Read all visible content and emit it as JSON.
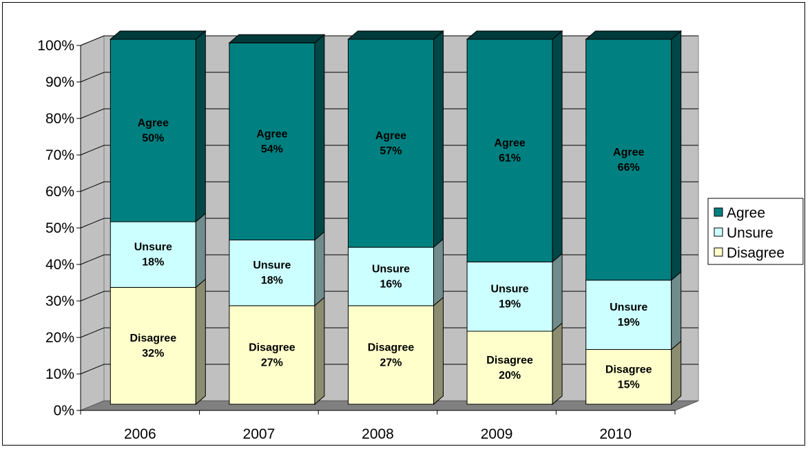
{
  "chart_data": {
    "type": "bar",
    "stacked": true,
    "percent": true,
    "three_d": true,
    "categories": [
      "2006",
      "2007",
      "2008",
      "2009",
      "2010"
    ],
    "series": [
      {
        "name": "Disagree",
        "values": [
          32,
          27,
          27,
          20,
          15
        ],
        "labels": [
          "32%",
          "27%",
          "27%",
          "20%",
          "15%"
        ],
        "color": "#FFFFCC"
      },
      {
        "name": "Unsure",
        "values": [
          18,
          18,
          16,
          19,
          19
        ],
        "labels": [
          "18%",
          "18%",
          "16%",
          "19%",
          "19%"
        ],
        "color": "#CCFFFF"
      },
      {
        "name": "Agree",
        "values": [
          50,
          54,
          57,
          61,
          66
        ],
        "labels": [
          "50%",
          "54%",
          "57%",
          "61%",
          "66%"
        ],
        "color": "#008080"
      }
    ],
    "y_ticks": [
      "0%",
      "10%",
      "20%",
      "30%",
      "40%",
      "50%",
      "60%",
      "70%",
      "80%",
      "90%",
      "100%"
    ],
    "ylim": [
      0,
      100
    ],
    "grid": true,
    "legend_position": "right",
    "wall_color": "#C0C0C0",
    "floor_color": "#808080"
  }
}
